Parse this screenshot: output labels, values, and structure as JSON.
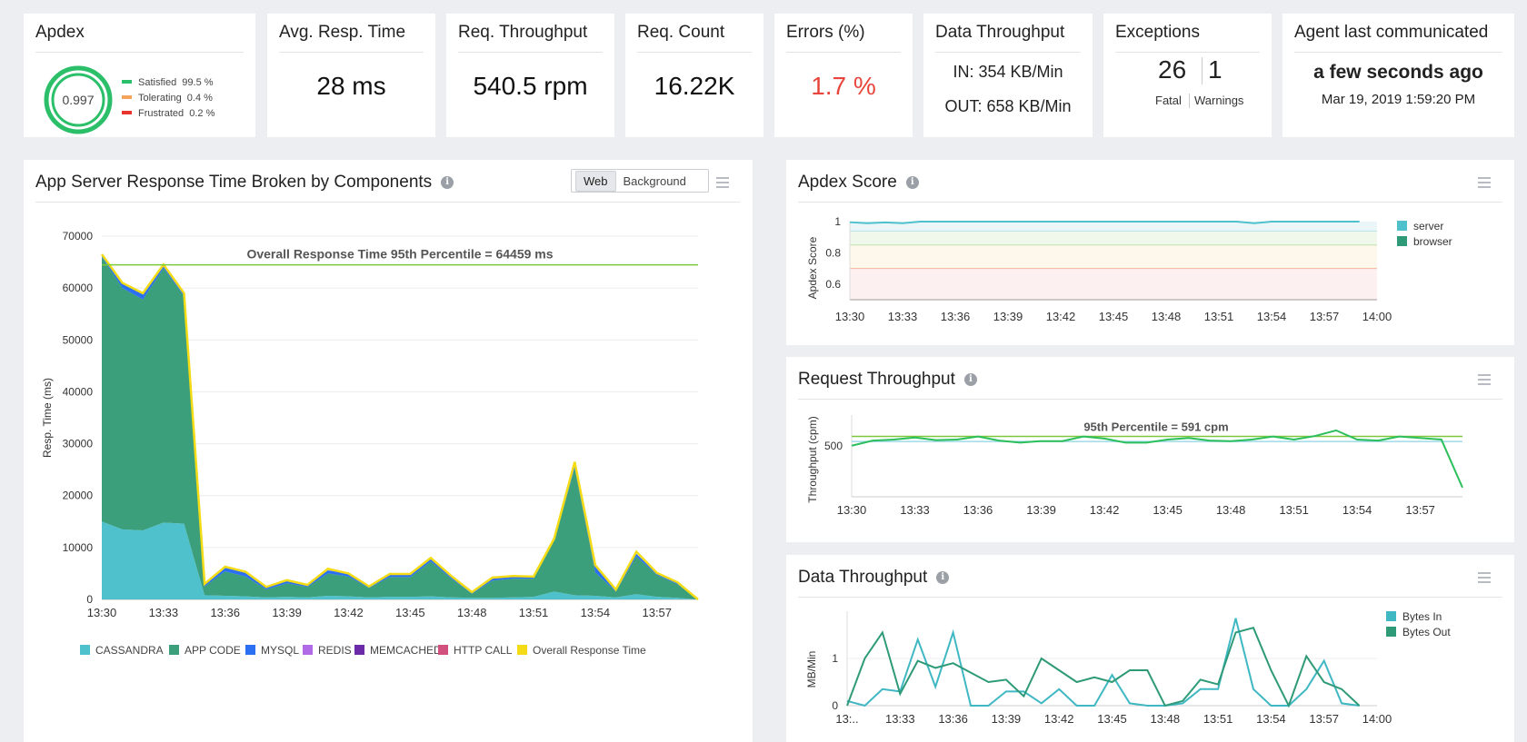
{
  "kpis": {
    "apdex": {
      "title": "Apdex",
      "score": "0.997",
      "legend": [
        {
          "label": "Satisfied",
          "value": "99.5 %",
          "color": "#2bbf6a"
        },
        {
          "label": "Tolerating",
          "value": "0.4 %",
          "color": "#f6a25a"
        },
        {
          "label": "Frustrated",
          "value": "0.2 %",
          "color": "#e8352b"
        }
      ]
    },
    "resp_time": {
      "title": "Avg. Resp. Time",
      "value": "28 ms"
    },
    "req_throughput": {
      "title": "Req. Throughput",
      "value": "540.5 rpm"
    },
    "req_count": {
      "title": "Req. Count",
      "value": "16.22K"
    },
    "errors": {
      "title": "Errors (%)",
      "value": "1.7 %",
      "color": "#e8453c"
    },
    "data_throughput": {
      "title": "Data Throughput",
      "in": "IN: 354 KB/Min",
      "out": "OUT: 658 KB/Min"
    },
    "exceptions": {
      "title": "Exceptions",
      "fatal_count": "26",
      "warning_count": "1",
      "fatal_label": "Fatal",
      "warning_label": "Warnings"
    },
    "agent": {
      "title": "Agent last communicated",
      "relative": "a few seconds ago",
      "absolute": "Mar 19, 2019 1:59:20 PM"
    }
  },
  "panels": {
    "response": {
      "title": "App Server Response Time Broken by Components",
      "toggle": [
        "Web",
        "Background"
      ],
      "active_toggle": "Web"
    },
    "apdex_score": {
      "title": "Apdex Score"
    },
    "request_throughput": {
      "title": "Request Throughput"
    },
    "data_throughput": {
      "title": "Data Throughput"
    }
  },
  "chart_data": [
    {
      "id": "response_time",
      "type": "area",
      "title": "Overall Response Time 95th Percentile = 64459 ms",
      "ylabel": "Resp. Time (ms)",
      "ylim": [
        0,
        70000
      ],
      "yticks": [
        0,
        10000,
        20000,
        30000,
        40000,
        50000,
        60000,
        70000
      ],
      "xlim": [
        0,
        29
      ],
      "xticks": [
        {
          "v": 0,
          "l": "13:30"
        },
        {
          "v": 3,
          "l": "13:33"
        },
        {
          "v": 6,
          "l": "13:36"
        },
        {
          "v": 9,
          "l": "13:39"
        },
        {
          "v": 12,
          "l": "13:42"
        },
        {
          "v": 15,
          "l": "13:45"
        },
        {
          "v": 18,
          "l": "13:48"
        },
        {
          "v": 21,
          "l": "13:51"
        },
        {
          "v": 24,
          "l": "13:54"
        },
        {
          "v": 27,
          "l": "13:57"
        }
      ],
      "x": [
        0,
        1,
        2,
        3,
        4,
        5,
        6,
        7,
        8,
        9,
        10,
        11,
        12,
        13,
        14,
        15,
        16,
        17,
        18,
        19,
        20,
        21,
        22,
        23,
        24,
        25,
        26,
        27,
        28,
        29
      ],
      "series": [
        {
          "name": "CASSANDRA",
          "color": "#4fc1cc",
          "values": [
            15000,
            13500,
            13300,
            14800,
            14600,
            800,
            700,
            600,
            400,
            500,
            400,
            700,
            600,
            400,
            500,
            500,
            600,
            400,
            300,
            300,
            400,
            500,
            1500,
            800,
            700,
            400,
            1000,
            500,
            300,
            0
          ]
        },
        {
          "name": "APP CODE",
          "color": "#3c9f7c",
          "values": [
            51000,
            46500,
            44500,
            49000,
            43800,
            1700,
            4700,
            3800,
            1500,
            2600,
            2000,
            4300,
            3800,
            1800,
            3800,
            3800,
            6700,
            3600,
            800,
            3300,
            3600,
            3500,
            9800,
            24500,
            4500,
            1100,
            7300,
            4200,
            2600,
            0
          ]
        },
        {
          "name": "MYSQL",
          "color": "#2b6ff2",
          "values": [
            200,
            900,
            1200,
            400,
            500,
            500,
            800,
            900,
            400,
            500,
            400,
            600,
            600,
            300,
            500,
            500,
            600,
            400,
            200,
            500,
            400,
            300,
            300,
            500,
            1300,
            300,
            500,
            300,
            300,
            0
          ]
        },
        {
          "name": "REDIS",
          "color": "#b06ae8",
          "values": [
            0,
            0,
            0,
            0,
            0,
            0,
            0,
            0,
            0,
            0,
            0,
            0,
            0,
            0,
            0,
            0,
            0,
            0,
            0,
            0,
            0,
            0,
            0,
            0,
            0,
            0,
            0,
            0,
            0,
            0
          ]
        },
        {
          "name": "MEMCACHED",
          "color": "#6b2aa8",
          "values": [
            0,
            0,
            0,
            0,
            0,
            0,
            0,
            0,
            0,
            0,
            0,
            0,
            0,
            0,
            0,
            0,
            0,
            0,
            0,
            0,
            0,
            0,
            0,
            0,
            0,
            0,
            0,
            0,
            0,
            0
          ]
        },
        {
          "name": "HTTP CALL",
          "color": "#d2507e",
          "values": [
            0,
            0,
            0,
            0,
            0,
            0,
            0,
            0,
            0,
            0,
            0,
            0,
            0,
            0,
            0,
            0,
            0,
            0,
            0,
            0,
            0,
            0,
            0,
            0,
            0,
            0,
            0,
            0,
            0,
            0
          ]
        },
        {
          "name": "Overall Response Time",
          "color": "#f3dc16",
          "values": [
            66500,
            61000,
            59000,
            64500,
            59000,
            3000,
            6300,
            5300,
            2400,
            3700,
            2800,
            5900,
            5000,
            2500,
            4900,
            4900,
            8000,
            4500,
            1400,
            4200,
            4500,
            4400,
            11700,
            26500,
            6600,
            1900,
            9200,
            5100,
            3300,
            0
          ]
        }
      ],
      "threshold": {
        "value": 64459,
        "color": "#7cc73a"
      }
    },
    {
      "id": "apdex_score",
      "type": "line",
      "ylabel": "Apdex Score",
      "ylim": [
        0.5,
        1.0
      ],
      "yticks": [
        0.6,
        0.8,
        1
      ],
      "xlim": [
        0,
        30
      ],
      "xticks": [
        {
          "v": 0,
          "l": "13:30"
        },
        {
          "v": 3,
          "l": "13:33"
        },
        {
          "v": 6,
          "l": "13:36"
        },
        {
          "v": 9,
          "l": "13:39"
        },
        {
          "v": 12,
          "l": "13:42"
        },
        {
          "v": 15,
          "l": "13:45"
        },
        {
          "v": 18,
          "l": "13:48"
        },
        {
          "v": 21,
          "l": "13:51"
        },
        {
          "v": 24,
          "l": "13:54"
        },
        {
          "v": 27,
          "l": "13:57"
        },
        {
          "v": 30,
          "l": "14:00"
        }
      ],
      "series": [
        {
          "name": "server",
          "color": "#4fc1cc",
          "x": [
            0,
            1,
            2,
            3,
            4,
            5,
            6,
            7,
            8,
            9,
            10,
            11,
            12,
            13,
            14,
            15,
            16,
            17,
            18,
            19,
            20,
            21,
            22,
            23,
            24,
            25,
            26,
            27,
            28,
            29
          ],
          "values": [
            0.996,
            0.99,
            0.995,
            0.99,
            1,
            1,
            1,
            1,
            1,
            1,
            1,
            1,
            1,
            1,
            1,
            1,
            1,
            1,
            1,
            1,
            1,
            1,
            1,
            0.99,
            1,
            1,
            1,
            1,
            1,
            1
          ]
        },
        {
          "name": "browser",
          "color": "#2e9a78",
          "x": [],
          "values": []
        }
      ],
      "bands": [
        {
          "from": 0.94,
          "to": 1.0,
          "color": "#eaf6f8"
        },
        {
          "from": 0.85,
          "to": 0.94,
          "color": "#eff8ea"
        },
        {
          "from": 0.7,
          "to": 0.85,
          "color": "#fdf7ec"
        },
        {
          "from": 0.5,
          "to": 0.7,
          "color": "#fcf1f0"
        }
      ]
    },
    {
      "id": "request_throughput",
      "type": "line",
      "title": "95th Percentile = 591 cpm",
      "ylabel": "Throughput (cpm)",
      "ylim": [
        0,
        800
      ],
      "yticks": [
        500
      ],
      "xlim": [
        0,
        29
      ],
      "xticks": [
        {
          "v": 0,
          "l": "13:30"
        },
        {
          "v": 3,
          "l": "13:33"
        },
        {
          "v": 6,
          "l": "13:36"
        },
        {
          "v": 9,
          "l": "13:39"
        },
        {
          "v": 12,
          "l": "13:42"
        },
        {
          "v": 15,
          "l": "13:45"
        },
        {
          "v": 18,
          "l": "13:48"
        },
        {
          "v": 21,
          "l": "13:51"
        },
        {
          "v": 24,
          "l": "13:54"
        },
        {
          "v": 27,
          "l": "13:57"
        }
      ],
      "series": [
        {
          "name": "Throughput",
          "color": "#2bbf5c",
          "x": [
            0,
            1,
            2,
            3,
            4,
            5,
            6,
            7,
            8,
            9,
            10,
            11,
            12,
            13,
            14,
            15,
            16,
            17,
            18,
            19,
            20,
            21,
            22,
            23,
            24,
            25,
            26,
            27,
            28,
            29
          ],
          "values": [
            500,
            550,
            560,
            580,
            555,
            560,
            590,
            550,
            530,
            545,
            545,
            590,
            570,
            530,
            530,
            560,
            575,
            550,
            545,
            560,
            590,
            560,
            595,
            650,
            560,
            550,
            590,
            575,
            560,
            90
          ]
        }
      ],
      "percentile": {
        "value": 591,
        "color": "#7cc73a"
      },
      "average": {
        "value": 541,
        "color": "#9fd9e6"
      }
    },
    {
      "id": "data_throughput",
      "type": "line",
      "ylabel": "MB/Min",
      "ylim": [
        0,
        2
      ],
      "yticks": [
        0,
        1
      ],
      "xlim": [
        0,
        30
      ],
      "xticks": [
        {
          "v": 0,
          "l": "13:.."
        },
        {
          "v": 3,
          "l": "13:33"
        },
        {
          "v": 6,
          "l": "13:36"
        },
        {
          "v": 9,
          "l": "13:39"
        },
        {
          "v": 12,
          "l": "13:42"
        },
        {
          "v": 15,
          "l": "13:45"
        },
        {
          "v": 18,
          "l": "13:48"
        },
        {
          "v": 21,
          "l": "13:51"
        },
        {
          "v": 24,
          "l": "13:54"
        },
        {
          "v": 27,
          "l": "13:57"
        },
        {
          "v": 30,
          "l": "14:00"
        }
      ],
      "series": [
        {
          "name": "Bytes In",
          "color": "#3fb8c4",
          "x": [
            0,
            1,
            2,
            3,
            4,
            5,
            6,
            7,
            8,
            9,
            10,
            11,
            12,
            13,
            14,
            15,
            16,
            17,
            18,
            19,
            20,
            21,
            22,
            23,
            24,
            25,
            26,
            27,
            28,
            29
          ],
          "values": [
            0.1,
            0,
            0.35,
            0.3,
            1.4,
            0.4,
            1.55,
            0,
            0,
            0.3,
            0.3,
            0.05,
            0.35,
            0,
            0,
            0.65,
            0.05,
            0,
            0,
            0.05,
            0.35,
            0.35,
            1.85,
            0.35,
            0,
            0,
            0.35,
            0.95,
            0.05,
            0
          ]
        },
        {
          "name": "Bytes Out",
          "color": "#2e9a78",
          "x": [
            0,
            1,
            2,
            3,
            4,
            5,
            6,
            7,
            8,
            9,
            10,
            11,
            12,
            13,
            14,
            15,
            16,
            17,
            18,
            19,
            20,
            21,
            22,
            23,
            24,
            25,
            26,
            27,
            28,
            29
          ],
          "values": [
            0,
            1.0,
            1.55,
            0.25,
            0.95,
            0.8,
            0.9,
            0.7,
            0.5,
            0.55,
            0.2,
            1.0,
            0.75,
            0.5,
            0.6,
            0.5,
            0.75,
            0.75,
            0,
            0.1,
            0.55,
            0.45,
            1.55,
            1.65,
            0.75,
            0,
            1.05,
            0.5,
            0.35,
            0
          ]
        }
      ]
    }
  ]
}
